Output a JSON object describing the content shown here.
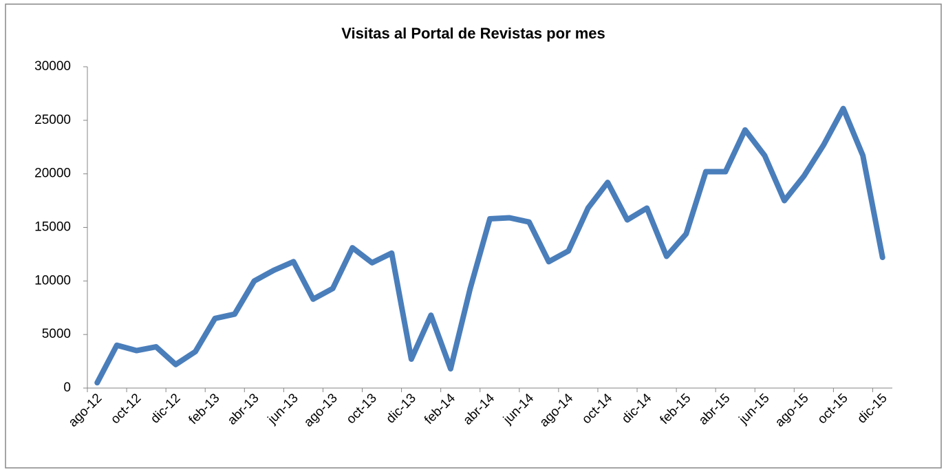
{
  "chart_data": {
    "type": "line",
    "title": "Visitas al Portal de Revistas por mes",
    "categories": [
      "ago-12",
      null,
      "oct-12",
      null,
      "dic-12",
      null,
      "feb-13",
      null,
      "abr-13",
      null,
      "jun-13",
      null,
      "ago-13",
      null,
      "oct-13",
      null,
      "dic-13",
      null,
      "feb-14",
      null,
      "abr-14",
      null,
      "jun-14",
      null,
      "ago-14",
      null,
      "oct-14",
      null,
      "dic-14",
      null,
      "feb-15",
      null,
      "abr-15",
      null,
      "jun-15",
      null,
      "ago-15",
      null,
      "oct-15",
      null,
      "dic-15"
    ],
    "series": [
      {
        "name": "Visitas",
        "color": "#4a7ebb",
        "values": [
          500,
          4000,
          3500,
          3850,
          2200,
          3400,
          6500,
          6900,
          10000,
          11000,
          11800,
          8300,
          9300,
          13100,
          11700,
          12600,
          2700,
          6800,
          1800,
          9300,
          15800,
          15900,
          15500,
          11800,
          12800,
          16800,
          19200,
          15700,
          16800,
          12300,
          14400,
          20200,
          20200,
          24100,
          21700,
          17500,
          19800,
          22700,
          26100,
          21700,
          12200
        ]
      }
    ],
    "ylim": [
      0,
      30000
    ],
    "yticks": [
      0,
      5000,
      10000,
      15000,
      20000,
      25000,
      30000
    ],
    "grid": false
  }
}
